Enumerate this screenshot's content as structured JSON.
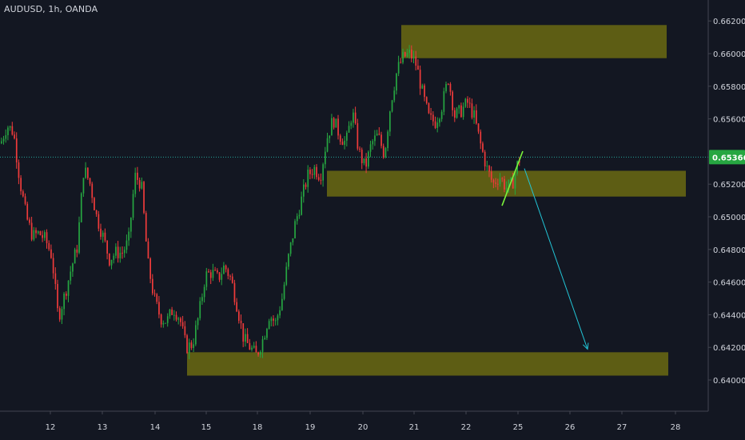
{
  "header": {
    "title": "AUDUSD, 1h, OANDA"
  },
  "colors": {
    "background": "#131722",
    "up": "#26a641",
    "down": "#ef3b3b",
    "zone": "#6b6a12",
    "price_line": "#26a69a",
    "price_badge": "#26a641",
    "projection_arrow": "#22c5d6",
    "trendline": "#7cf53b",
    "axis_text": "#d1d4dc"
  },
  "chart_data": {
    "type": "candlestick",
    "title": "AUDUSD, 1h, OANDA",
    "xlabel": "",
    "ylabel": "",
    "x_ticks": [
      "12",
      "13",
      "14",
      "15",
      "17",
      "18",
      "19",
      "20",
      "21",
      "22",
      "25",
      "26",
      "27",
      "28"
    ],
    "y_ticks": [
      "0.66200",
      "0.66000",
      "0.65800",
      "0.65600",
      "0.65200",
      "0.65000",
      "0.64800",
      "0.64600",
      "0.64400",
      "0.64200",
      "0.64000"
    ],
    "ylim": [
      0.6387,
      0.6625
    ],
    "current_price": {
      "value": 0.65366,
      "label": "0.65366"
    },
    "price_path": [
      [
        0,
        0.6545
      ],
      [
        8,
        0.6556
      ],
      [
        16,
        0.6552
      ],
      [
        24,
        0.6522
      ],
      [
        32,
        0.65
      ],
      [
        40,
        0.6488
      ],
      [
        48,
        0.649
      ],
      [
        56,
        0.6486
      ],
      [
        64,
        0.6476
      ],
      [
        72,
        0.6438
      ],
      [
        80,
        0.6452
      ],
      [
        88,
        0.6468
      ],
      [
        96,
        0.6482
      ],
      [
        104,
        0.653
      ],
      [
        112,
        0.652
      ],
      [
        120,
        0.65
      ],
      [
        128,
        0.6488
      ],
      [
        136,
        0.6474
      ],
      [
        144,
        0.6478
      ],
      [
        152,
        0.6478
      ],
      [
        160,
        0.6485
      ],
      [
        168,
        0.6525
      ],
      [
        176,
        0.652
      ],
      [
        184,
        0.6472
      ],
      [
        192,
        0.645
      ],
      [
        200,
        0.6438
      ],
      [
        208,
        0.6436
      ],
      [
        216,
        0.6444
      ],
      [
        224,
        0.6438
      ],
      [
        232,
        0.642
      ],
      [
        240,
        0.6422
      ],
      [
        248,
        0.644
      ],
      [
        256,
        0.6464
      ],
      [
        264,
        0.6466
      ],
      [
        272,
        0.6462
      ],
      [
        280,
        0.647
      ],
      [
        288,
        0.6462
      ],
      [
        296,
        0.6445
      ],
      [
        304,
        0.6425
      ],
      [
        312,
        0.642
      ],
      [
        320,
        0.6415
      ],
      [
        328,
        0.6425
      ],
      [
        336,
        0.644
      ],
      [
        344,
        0.6435
      ],
      [
        352,
        0.645
      ],
      [
        360,
        0.6475
      ],
      [
        368,
        0.6495
      ],
      [
        376,
        0.651
      ],
      [
        384,
        0.6525
      ],
      [
        392,
        0.653
      ],
      [
        400,
        0.6525
      ],
      [
        408,
        0.6548
      ],
      [
        416,
        0.656
      ],
      [
        424,
        0.655
      ],
      [
        432,
        0.6545
      ],
      [
        440,
        0.6565
      ],
      [
        448,
        0.654
      ],
      [
        456,
        0.653
      ],
      [
        464,
        0.6545
      ],
      [
        472,
        0.655
      ],
      [
        480,
        0.6538
      ],
      [
        488,
        0.657
      ],
      [
        496,
        0.659
      ],
      [
        504,
        0.6598
      ],
      [
        512,
        0.66
      ],
      [
        520,
        0.6593
      ],
      [
        528,
        0.6575
      ],
      [
        536,
        0.656
      ],
      [
        544,
        0.6558
      ],
      [
        552,
        0.6568
      ],
      [
        560,
        0.6585
      ],
      [
        568,
        0.6562
      ],
      [
        576,
        0.6565
      ],
      [
        584,
        0.657
      ],
      [
        592,
        0.6562
      ],
      [
        600,
        0.6545
      ],
      [
        608,
        0.653
      ],
      [
        616,
        0.652
      ],
      [
        624,
        0.6525
      ],
      [
        632,
        0.6518
      ],
      [
        640,
        0.652
      ],
      [
        648,
        0.6535
      ],
      [
        652,
        0.6536
      ]
    ],
    "zones": [
      {
        "x0": 502,
        "x1": 834,
        "y_top": 0.66175,
        "y_bottom": 0.65972
      },
      {
        "x0": 409,
        "x1": 858,
        "y_top": 0.65282,
        "y_bottom": 0.65124
      },
      {
        "x0": 234,
        "x1": 836,
        "y_top": 0.6417,
        "y_bottom": 0.64027
      }
    ],
    "trendline": {
      "x0": 628,
      "y0": 0.65068,
      "x1": 654,
      "y1": 0.65402
    },
    "projection": {
      "x0": 656,
      "y0": 0.65296,
      "x1": 735,
      "y1": 0.64189
    }
  }
}
